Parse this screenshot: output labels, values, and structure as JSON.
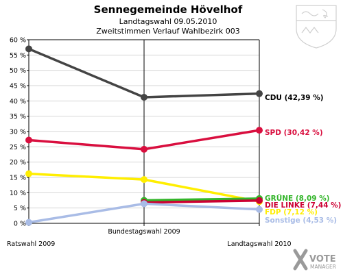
{
  "header": {
    "title": "Sennegemeinde Hövelhof",
    "subtitle1": "Landtagswahl 09.05.2010",
    "subtitle2": "Zweitstimmen Verlauf Wahlbezirk 003"
  },
  "branding": {
    "logo_text_1": "VOTE",
    "logo_text_2": "MANAGER"
  },
  "chart_data": {
    "type": "line",
    "categories": [
      "Ratswahl 2009",
      "Bundestagswahl 2009",
      "Landtagswahl 2010"
    ],
    "ylim": [
      0,
      60
    ],
    "yticks": [
      "0 %",
      "5 %",
      "10 %",
      "15 %",
      "20 %",
      "25 %",
      "30 %",
      "35 %",
      "40 %",
      "45 %",
      "50 %",
      "55 %",
      "60 %"
    ],
    "grid": true,
    "series": [
      {
        "name": "CDU",
        "label": "CDU (42,39 %)",
        "color": "#444444",
        "label_color": "#000000",
        "values": [
          57.0,
          41.2,
          42.39
        ]
      },
      {
        "name": "SPD",
        "label": "SPD (30,42 %)",
        "color": "#d90f3f",
        "label_color": "#d90f3f",
        "values": [
          27.2,
          24.2,
          30.42
        ]
      },
      {
        "name": "FDP",
        "label": "FDP (7,12 %)",
        "color": "#ffee00",
        "label_color": "#ffee00",
        "values": [
          16.2,
          14.3,
          7.12
        ]
      },
      {
        "name": "GRÜNE",
        "label": "GRÜNE (8,09 %)",
        "color": "#33b52a",
        "label_color": "#33b52a",
        "values": [
          null,
          7.5,
          8.09
        ]
      },
      {
        "name": "DIE LINKE",
        "label": "DIE LINKE (7,44 %)",
        "color": "#cc0033",
        "label_color": "#cc0033",
        "values": [
          null,
          6.8,
          7.44
        ]
      },
      {
        "name": "Sonstige",
        "label": "Sonstige (4,53 %)",
        "color": "#a9bce6",
        "label_color": "#a9bce6",
        "values": [
          0.3,
          6.4,
          4.53
        ]
      }
    ]
  }
}
